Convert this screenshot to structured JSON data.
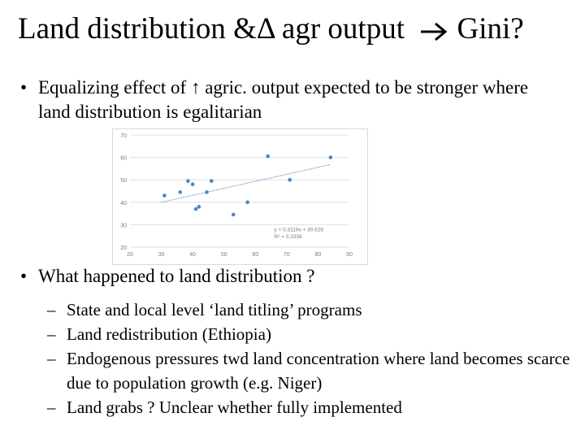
{
  "slide": {
    "title": "Land distribution &Δ agr output",
    "title_end": "Gini?",
    "bullet1": "Equalizing effect of ↑ agric. output expected to be stronger where land distribution is egalitarian",
    "bullet2": "What happened to land distribution ?",
    "bullet_symbol": "•",
    "dash_symbol": "–",
    "sub_items": [
      "State and local level ‘land titling’ programs",
      "Land redistribution (Ethiopia)",
      "Endogenous pressures twd land concentration where land becomes  scarce due to population growth (e.g. Niger)",
      "Land grabs ? Unclear whether fully implemented"
    ]
  },
  "chart_data": {
    "type": "scatter",
    "xlim": [
      20,
      90
    ],
    "ylim": [
      20,
      70
    ],
    "xticks": [
      20,
      30,
      40,
      50,
      60,
      70,
      80,
      90
    ],
    "yticks": [
      20,
      30,
      40,
      50,
      60,
      70
    ],
    "points": [
      {
        "x": 31,
        "y": 43
      },
      {
        "x": 36,
        "y": 44.5
      },
      {
        "x": 38.5,
        "y": 49.5
      },
      {
        "x": 40,
        "y": 48
      },
      {
        "x": 41,
        "y": 37
      },
      {
        "x": 42,
        "y": 38
      },
      {
        "x": 44.5,
        "y": 44.5
      },
      {
        "x": 46,
        "y": 49.5
      },
      {
        "x": 53,
        "y": 34.5
      },
      {
        "x": 57.5,
        "y": 40
      },
      {
        "x": 64,
        "y": 60.5
      },
      {
        "x": 71,
        "y": 50
      },
      {
        "x": 84,
        "y": 60
      }
    ],
    "trendline": {
      "slope": 0.3119,
      "intercept": 30.628,
      "x_range": [
        30,
        84
      ]
    },
    "equation": "y = 0.3119x + 30.628",
    "r_squared": "R² = 0.3339",
    "grid": true,
    "colors": {
      "point": "#4a86c5",
      "trend": "#4a86c5",
      "grid": "#d9d9d9",
      "text": "#7a7a7a"
    }
  }
}
